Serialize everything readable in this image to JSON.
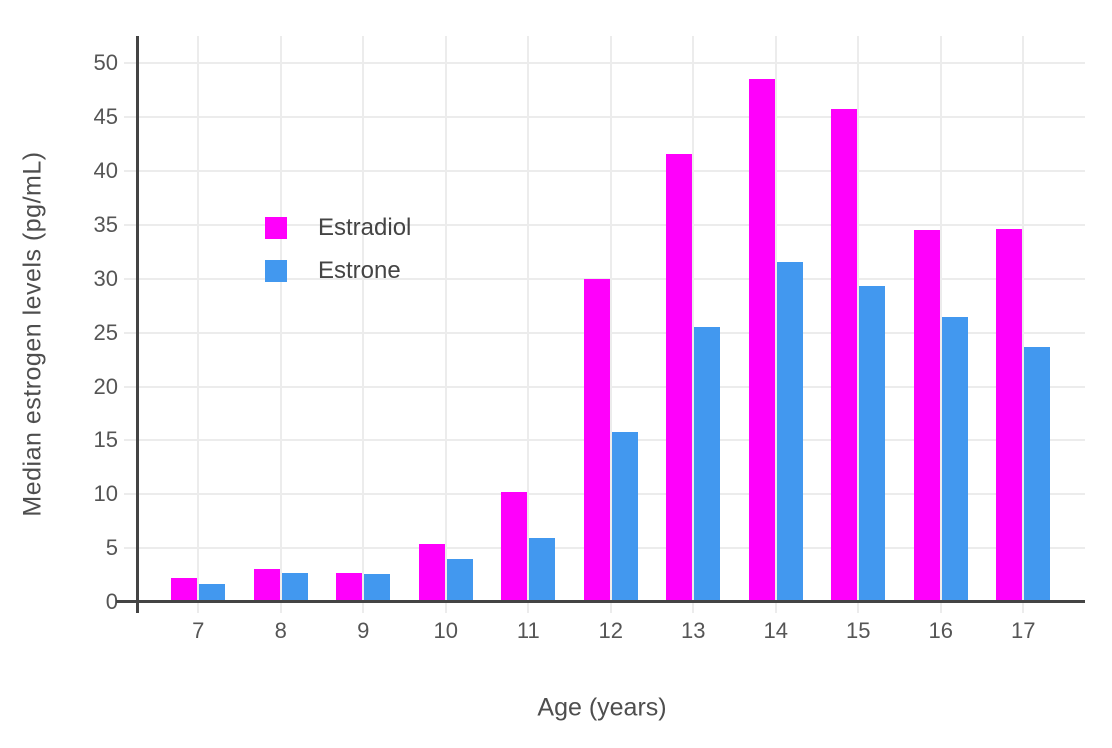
{
  "chart_data": {
    "type": "bar",
    "title": "",
    "xlabel": "Age (years)",
    "ylabel": "Median estrogen levels (pg/mL)",
    "categories": [
      7,
      8,
      9,
      10,
      11,
      12,
      13,
      14,
      15,
      16,
      17
    ],
    "series": [
      {
        "name": "Estradiol",
        "color": "#FF00FB",
        "values": [
          2.2,
          3.1,
          2.7,
          5.4,
          10.2,
          30.0,
          41.6,
          48.6,
          45.8,
          34.5,
          34.6
        ]
      },
      {
        "name": "Estrone",
        "color": "#4298EF",
        "values": [
          1.7,
          2.7,
          2.6,
          4.0,
          5.9,
          15.8,
          25.5,
          31.6,
          29.3,
          26.5,
          23.7
        ]
      }
    ],
    "ylim": [
      0,
      52.55
    ],
    "yticks": [
      0,
      5,
      10,
      15,
      20,
      25,
      30,
      35,
      40,
      45,
      50
    ],
    "grid": true,
    "legend_position": "inside-top-left"
  },
  "colors": {
    "estradiol": "#FF00FB",
    "estrone": "#4298EF",
    "gridline": "#ECECEC",
    "axis_line": "#444444",
    "tick_label": "#555555",
    "axis_title": "#4E4E4E",
    "legend_text": "#444444",
    "background": "#FFFFFF"
  },
  "legend": {
    "items": [
      {
        "label": "Estradiol"
      },
      {
        "label": "Estrone"
      }
    ]
  }
}
